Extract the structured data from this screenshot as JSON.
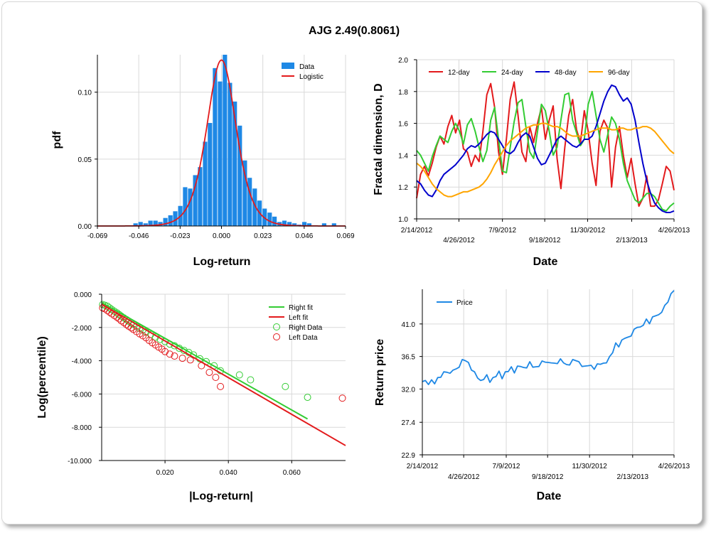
{
  "title": "AJG 2.49(0.8061)",
  "colors": {
    "bar": "#1e88e5",
    "logistic": "#e31a1c",
    "d12": "#e31a1c",
    "d24": "#33cc33",
    "d48": "#0000cc",
    "d96": "#ffa500",
    "right": "#33cc33",
    "left": "#e31a1c",
    "price": "#1e88e5",
    "grid": "#d9d9d9"
  },
  "chart_data": [
    {
      "id": "hist",
      "type": "bar",
      "xlabel": "Log-return",
      "ylabel": "pdf",
      "xlim": [
        -0.069,
        0.069
      ],
      "ylim": [
        0,
        0.128
      ],
      "xticks": [
        "-0.069",
        "-0.046",
        "-0.023",
        "0.000",
        "0.023",
        "0.046",
        "0.069"
      ],
      "yticks": [
        "0.00",
        "0.05",
        "0.10"
      ],
      "legend": [
        "Data",
        "Logistic"
      ],
      "bin_width": 0.00276,
      "bins": [
        [
          -0.0478,
          0.002
        ],
        [
          -0.045,
          0.003
        ],
        [
          -0.0422,
          0.002
        ],
        [
          -0.0395,
          0.004
        ],
        [
          -0.0367,
          0.004
        ],
        [
          -0.034,
          0.003
        ],
        [
          -0.0312,
          0.006
        ],
        [
          -0.0284,
          0.008
        ],
        [
          -0.0257,
          0.011
        ],
        [
          -0.0229,
          0.015
        ],
        [
          -0.0202,
          0.029
        ],
        [
          -0.0174,
          0.028
        ],
        [
          -0.0146,
          0.038
        ],
        [
          -0.0119,
          0.044
        ],
        [
          -0.0091,
          0.063
        ],
        [
          -0.0064,
          0.077
        ],
        [
          -0.0036,
          0.118
        ],
        [
          -0.0008,
          0.108
        ],
        [
          0.0019,
          0.128
        ],
        [
          0.0047,
          0.107
        ],
        [
          0.0074,
          0.093
        ],
        [
          0.0102,
          0.075
        ],
        [
          0.013,
          0.049
        ],
        [
          0.0157,
          0.036
        ],
        [
          0.0185,
          0.028
        ],
        [
          0.0212,
          0.019
        ],
        [
          0.024,
          0.013
        ],
        [
          0.0268,
          0.01
        ],
        [
          0.0295,
          0.007
        ],
        [
          0.0323,
          0.003
        ],
        [
          0.035,
          0.004
        ],
        [
          0.0378,
          0.003
        ],
        [
          0.0406,
          0.002
        ],
        [
          0.0433,
          0.001
        ],
        [
          0.0461,
          0.003
        ],
        [
          0.0488,
          0.002
        ],
        [
          0.0571,
          0.002
        ],
        [
          0.0626,
          0.002
        ]
      ],
      "logistic": {
        "mu": 0.0,
        "s": 0.0021,
        "peak": 0.124
      }
    },
    {
      "id": "fractal",
      "type": "line",
      "xlabel": "Date",
      "ylabel": "Fractal dimension, D",
      "xlim": [
        0,
        438
      ],
      "ylim": [
        1.0,
        2.0
      ],
      "yticks": [
        "1.0",
        "1.2",
        "1.4",
        "1.6",
        "1.8",
        "2.0"
      ],
      "xtick_labels": [
        "2/14/2012",
        "4/26/2012",
        "7/9/2012",
        "9/18/2012",
        "11/30/2012",
        "2/13/2013",
        "4/26/2013"
      ],
      "legend": [
        "12-day",
        "24-day",
        "48-day",
        "96-day"
      ],
      "series": [
        {
          "name": "12-day",
          "values": [
            1.13,
            1.28,
            1.33,
            1.27,
            1.35,
            1.45,
            1.52,
            1.47,
            1.58,
            1.65,
            1.54,
            1.62,
            1.44,
            1.42,
            1.33,
            1.4,
            1.36,
            1.55,
            1.78,
            1.85,
            1.7,
            1.42,
            1.28,
            1.5,
            1.75,
            1.86,
            1.65,
            1.42,
            1.36,
            1.58,
            1.48,
            1.6,
            1.7,
            1.5,
            1.62,
            1.71,
            1.38,
            1.19,
            1.45,
            1.65,
            1.75,
            1.56,
            1.48,
            1.68,
            1.55,
            1.35,
            1.21,
            1.55,
            1.62,
            1.57,
            1.2,
            1.45,
            1.58,
            1.4,
            1.26,
            1.38,
            1.22,
            1.08,
            1.13,
            1.27,
            1.08,
            1.08,
            1.12,
            1.22,
            1.33,
            1.3,
            1.18
          ]
        },
        {
          "name": "24-day",
          "values": [
            1.43,
            1.4,
            1.35,
            1.3,
            1.39,
            1.46,
            1.52,
            1.5,
            1.48,
            1.55,
            1.6,
            1.55,
            1.47,
            1.59,
            1.63,
            1.55,
            1.45,
            1.36,
            1.43,
            1.62,
            1.7,
            1.5,
            1.3,
            1.29,
            1.45,
            1.61,
            1.73,
            1.75,
            1.58,
            1.42,
            1.38,
            1.55,
            1.72,
            1.68,
            1.55,
            1.4,
            1.45,
            1.62,
            1.78,
            1.79,
            1.62,
            1.54,
            1.46,
            1.5,
            1.72,
            1.8,
            1.65,
            1.5,
            1.42,
            1.53,
            1.64,
            1.6,
            1.5,
            1.35,
            1.24,
            1.18,
            1.12,
            1.1,
            1.13,
            1.16,
            1.16,
            1.14,
            1.1,
            1.06,
            1.05,
            1.08,
            1.1
          ]
        },
        {
          "name": "48-day",
          "values": [
            1.24,
            1.22,
            1.18,
            1.15,
            1.14,
            1.18,
            1.24,
            1.28,
            1.3,
            1.32,
            1.34,
            1.37,
            1.4,
            1.44,
            1.46,
            1.45,
            1.47,
            1.5,
            1.53,
            1.55,
            1.54,
            1.5,
            1.46,
            1.42,
            1.41,
            1.43,
            1.48,
            1.52,
            1.54,
            1.52,
            1.45,
            1.38,
            1.34,
            1.35,
            1.4,
            1.45,
            1.5,
            1.52,
            1.5,
            1.48,
            1.46,
            1.45,
            1.47,
            1.5,
            1.5,
            1.52,
            1.58,
            1.66,
            1.74,
            1.8,
            1.84,
            1.83,
            1.78,
            1.74,
            1.76,
            1.72,
            1.62,
            1.48,
            1.35,
            1.24,
            1.16,
            1.1,
            1.07,
            1.05,
            1.04,
            1.04,
            1.05
          ]
        },
        {
          "name": "96-day",
          "values": [
            1.35,
            1.33,
            1.3,
            1.26,
            1.22,
            1.19,
            1.17,
            1.15,
            1.14,
            1.14,
            1.15,
            1.16,
            1.17,
            1.17,
            1.18,
            1.19,
            1.2,
            1.22,
            1.25,
            1.29,
            1.34,
            1.38,
            1.42,
            1.46,
            1.49,
            1.51,
            1.53,
            1.55,
            1.57,
            1.58,
            1.59,
            1.59,
            1.6,
            1.6,
            1.59,
            1.58,
            1.58,
            1.57,
            1.55,
            1.53,
            1.52,
            1.52,
            1.52,
            1.53,
            1.54,
            1.55,
            1.56,
            1.57,
            1.57,
            1.57,
            1.56,
            1.56,
            1.57,
            1.57,
            1.56,
            1.56,
            1.57,
            1.57,
            1.58,
            1.58,
            1.57,
            1.55,
            1.52,
            1.49,
            1.46,
            1.43,
            1.41
          ]
        }
      ]
    },
    {
      "id": "tail",
      "type": "scatter",
      "xlabel": "|Log-return|",
      "ylabel": "Log(percentile)",
      "xlim": [
        0,
        0.077
      ],
      "ylim": [
        -10.0,
        0.0
      ],
      "xticks": [
        "0.020",
        "0.040",
        "0.060"
      ],
      "yticks": [
        "0.000",
        "-2.000",
        "-4.000",
        "-6.000",
        "-8.000",
        "-10.000"
      ],
      "legend": [
        "Right fit",
        "Left fit",
        "Right Data",
        "Left Data"
      ],
      "right_fit": {
        "x": [
          0.0,
          0.065
        ],
        "y": [
          -0.5,
          -7.5
        ]
      },
      "left_fit": {
        "x": [
          0.0,
          0.077
        ],
        "y": [
          -0.6,
          -9.1
        ]
      },
      "right_data": [
        [
          0.0003,
          -0.62
        ],
        [
          0.001,
          -0.66
        ],
        [
          0.0018,
          -0.72
        ],
        [
          0.0025,
          -0.82
        ],
        [
          0.0032,
          -0.92
        ],
        [
          0.004,
          -1.02
        ],
        [
          0.0048,
          -1.12
        ],
        [
          0.0055,
          -1.22
        ],
        [
          0.0062,
          -1.32
        ],
        [
          0.007,
          -1.42
        ],
        [
          0.0078,
          -1.52
        ],
        [
          0.0085,
          -1.62
        ],
        [
          0.0093,
          -1.72
        ],
        [
          0.01,
          -1.82
        ],
        [
          0.011,
          -1.95
        ],
        [
          0.012,
          -2.05
        ],
        [
          0.013,
          -2.15
        ],
        [
          0.014,
          -2.28
        ],
        [
          0.0155,
          -2.42
        ],
        [
          0.017,
          -2.58
        ],
        [
          0.0185,
          -2.72
        ],
        [
          0.02,
          -2.85
        ],
        [
          0.0215,
          -3.0
        ],
        [
          0.023,
          -3.1
        ],
        [
          0.0245,
          -3.25
        ],
        [
          0.026,
          -3.38
        ],
        [
          0.0275,
          -3.5
        ],
        [
          0.029,
          -3.65
        ],
        [
          0.031,
          -3.88
        ],
        [
          0.033,
          -4.05
        ],
        [
          0.0355,
          -4.3
        ],
        [
          0.0375,
          -4.6
        ],
        [
          0.0435,
          -4.85
        ],
        [
          0.047,
          -5.15
        ],
        [
          0.058,
          -5.55
        ],
        [
          0.065,
          -6.2
        ]
      ],
      "left_data": [
        [
          0.0003,
          -0.82
        ],
        [
          0.001,
          -0.88
        ],
        [
          0.0018,
          -0.98
        ],
        [
          0.0025,
          -1.08
        ],
        [
          0.0032,
          -1.18
        ],
        [
          0.004,
          -1.28
        ],
        [
          0.0048,
          -1.38
        ],
        [
          0.0055,
          -1.48
        ],
        [
          0.0062,
          -1.6
        ],
        [
          0.007,
          -1.7
        ],
        [
          0.0078,
          -1.82
        ],
        [
          0.0085,
          -1.92
        ],
        [
          0.0093,
          -2.02
        ],
        [
          0.01,
          -2.12
        ],
        [
          0.011,
          -2.25
        ],
        [
          0.012,
          -2.38
        ],
        [
          0.013,
          -2.5
        ],
        [
          0.014,
          -2.62
        ],
        [
          0.015,
          -2.78
        ],
        [
          0.016,
          -2.92
        ],
        [
          0.017,
          -3.05
        ],
        [
          0.018,
          -3.18
        ],
        [
          0.019,
          -3.3
        ],
        [
          0.02,
          -3.45
        ],
        [
          0.0215,
          -3.6
        ],
        [
          0.023,
          -3.72
        ],
        [
          0.0255,
          -3.85
        ],
        [
          0.028,
          -3.95
        ],
        [
          0.0315,
          -4.3
        ],
        [
          0.034,
          -4.7
        ],
        [
          0.036,
          -5.0
        ],
        [
          0.0375,
          -5.55
        ],
        [
          0.076,
          -6.25
        ]
      ]
    },
    {
      "id": "price",
      "type": "line",
      "xlabel": "Date",
      "ylabel": "Return price",
      "xlim": [
        0,
        438
      ],
      "ylim": [
        22.9,
        45.8
      ],
      "yticks": [
        "22.9",
        "27.4",
        "32.0",
        "36.5",
        "41.0"
      ],
      "xtick_labels": [
        "2/14/2012",
        "4/26/2012",
        "7/9/2012",
        "9/18/2012",
        "11/30/2012",
        "2/13/2013",
        "4/26/2013"
      ],
      "legend": [
        "Price"
      ],
      "series": [
        {
          "name": "Price",
          "values": [
            33.2,
            33.0,
            32.8,
            33.1,
            32.9,
            33.4,
            33.8,
            34.2,
            34.5,
            34.0,
            34.8,
            34.6,
            35.2,
            35.9,
            36.1,
            35.5,
            34.8,
            34.2,
            33.7,
            33.0,
            33.5,
            33.8,
            33.1,
            33.4,
            33.9,
            34.3,
            33.6,
            34.2,
            34.6,
            34.9,
            34.4,
            35.0,
            35.3,
            34.8,
            35.1,
            35.6,
            35.2,
            34.9,
            35.3,
            35.7,
            35.9,
            35.5,
            35.8,
            35.4,
            35.7,
            36.0,
            35.8,
            35.2,
            35.5,
            35.9,
            36.1,
            35.6,
            35.3,
            35.0,
            35.4,
            35.1,
            34.9,
            35.3,
            35.6,
            35.4,
            35.8,
            36.3,
            37.2,
            38.2,
            38.0,
            38.6,
            39.2,
            39.0,
            39.5,
            40.1,
            40.7,
            40.4,
            41.0,
            41.5,
            41.2,
            41.8,
            42.3,
            42.1,
            42.8,
            43.4,
            44.2,
            45.0,
            45.8
          ]
        }
      ]
    }
  ]
}
